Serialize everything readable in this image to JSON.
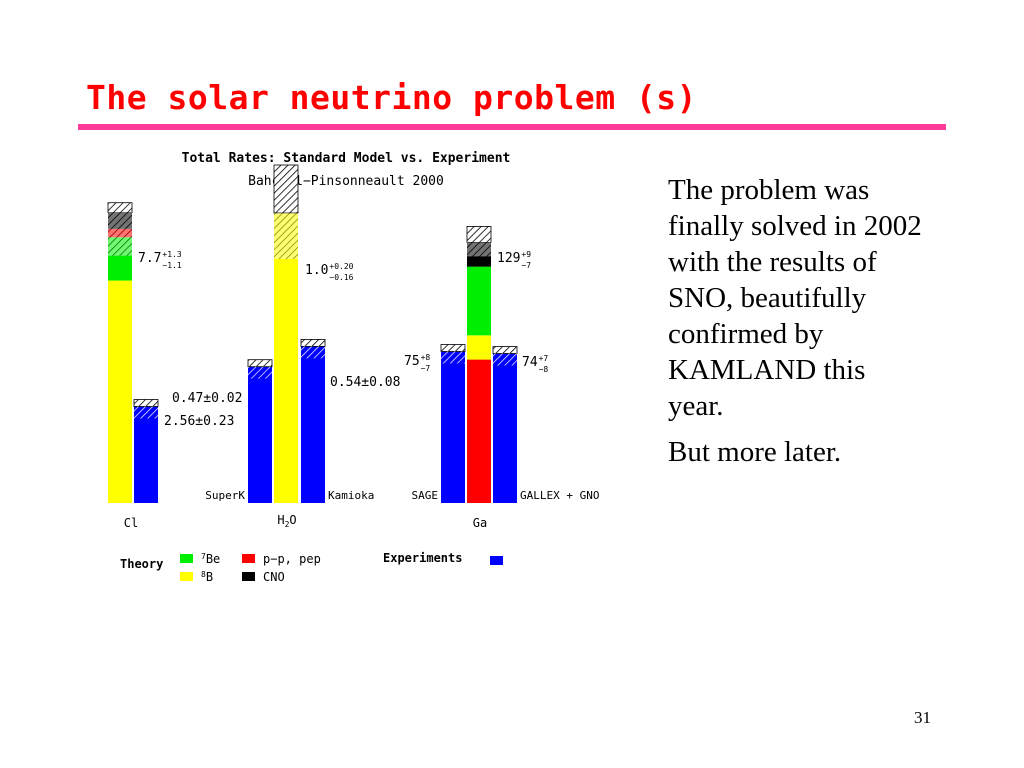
{
  "slide": {
    "title": "The solar neutrino problem (s)",
    "paragraphs": [
      "The problem was finally solved in 2002 with the results of SNO, beautifully confirmed by KAMLAND this year.",
      "But more later."
    ],
    "page_number": "31"
  },
  "colors": {
    "title": "#ff0000",
    "rule": "#ff3b9a",
    "B8": "#ffff00",
    "Be7": "#00ee00",
    "pp_pep": "#ff0000",
    "CNO": "#000000",
    "experiment": "#0000ff"
  },
  "chart_data": {
    "type": "bar",
    "stacked": true,
    "title": "Total Rates: Standard Model vs. Experiment",
    "subtitle": "Bahcall−Pinsonneault 2000",
    "groups": [
      {
        "label": "Cl",
        "theory": {
          "value_label": "7.7",
          "err_up": "+1.3",
          "err_down": "−1.1",
          "components": [
            {
              "source": "8B",
              "value": 5.9
            },
            {
              "source": "7Be",
              "value": 1.15
            },
            {
              "source": "pp, pep",
              "value": 0.22
            },
            {
              "source": "CNO",
              "value": 0.43
            }
          ]
        },
        "experiments": [
          {
            "name": "",
            "value": 2.56,
            "value_label": "2.56±0.23"
          }
        ]
      },
      {
        "label": "H2O",
        "label_main": "H",
        "label_sub": "2",
        "label_end": "O",
        "theory": {
          "value_label": "1.0",
          "err_up": "+0.20",
          "err_down": "−0.16",
          "components": [
            {
              "source": "8B",
              "value": 1.0
            }
          ]
        },
        "experiments": [
          {
            "name": "SuperK",
            "value": 0.47,
            "value_label": "0.47±0.02"
          },
          {
            "name": "Kamioka",
            "value": 0.54,
            "value_label": "0.54±0.08"
          }
        ]
      },
      {
        "label": "Ga",
        "theory": {
          "value_label": "129",
          "err_up": "+9",
          "err_down": "−7",
          "components": [
            {
              "source": "pp, pep",
              "value": 71
            },
            {
              "source": "8B",
              "value": 12
            },
            {
              "source": "7Be",
              "value": 34
            },
            {
              "source": "CNO",
              "value": 12
            }
          ]
        },
        "experiments": [
          {
            "name": "SAGE",
            "value": 75,
            "value_label": "75",
            "err_up": "+8",
            "err_down": "−7"
          },
          {
            "name": "GALLEX + GNO",
            "value": 74,
            "value_label": "74",
            "err_up": "+7",
            "err_down": "−8"
          }
        ]
      }
    ],
    "legend": {
      "theory_title": "Theory",
      "experiments_title": "Experiments",
      "items": [
        {
          "key": "Be7",
          "sup": "7",
          "label": "Be"
        },
        {
          "key": "B8",
          "sup": "8",
          "label": "B"
        },
        {
          "key": "pp_pep",
          "sup": "",
          "label": "p−p, pep"
        },
        {
          "key": "CNO",
          "sup": "",
          "label": "CNO"
        }
      ]
    }
  }
}
